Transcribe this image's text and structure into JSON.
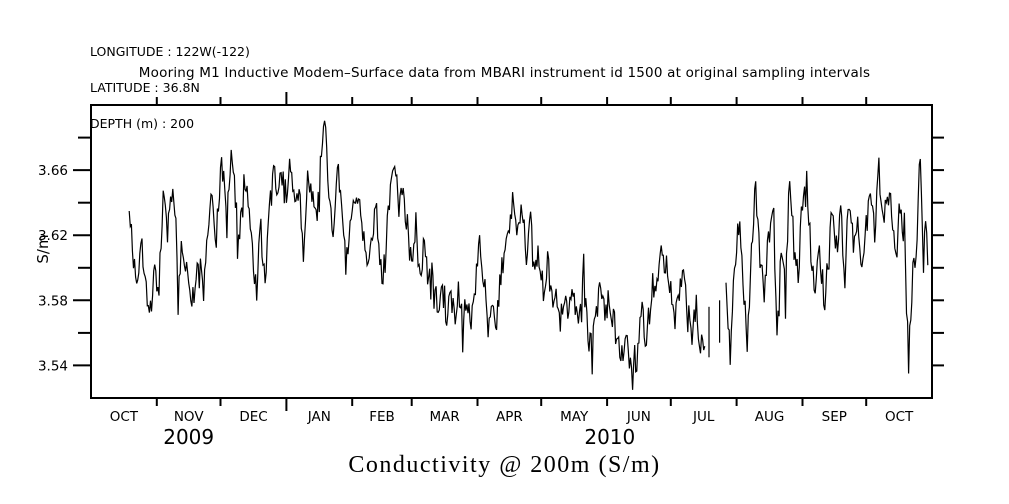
{
  "header": {
    "longitude": "LONGITUDE : 122W(-122)",
    "latitude": "LATITUDE : 36.8N",
    "depth": "DEPTH (m) : 200"
  },
  "chart_data": {
    "type": "line",
    "title": "Mooring M1 Inductive Modem–Surface data from MBARI instrument id 1500 at original sampling intervals",
    "bottom_title": "Conductivity @ 200m (S/m)",
    "ylabel": "S/m",
    "line_color": "#000000",
    "background_color": "#ffffff",
    "ylim": [
      3.52,
      3.7
    ],
    "x_range_days": [
      0,
      396
    ],
    "y_ticks_major": [
      3.54,
      3.58,
      3.62,
      3.66
    ],
    "y_tick_labels": [
      "3.54",
      "3.58",
      "3.62",
      "3.66"
    ],
    "y_ticks_minor": [
      3.56,
      3.6,
      3.64,
      3.68
    ],
    "month_boundary_days": [
      31,
      61,
      92,
      123,
      151,
      182,
      212,
      243,
      273,
      304,
      335,
      365
    ],
    "year_tick_day": 92,
    "months": [
      {
        "label": "OCT",
        "center_day": 15.5
      },
      {
        "label": "NOV",
        "center_day": 46
      },
      {
        "label": "DEC",
        "center_day": 76.5
      },
      {
        "label": "JAN",
        "center_day": 107.5
      },
      {
        "label": "FEB",
        "center_day": 137
      },
      {
        "label": "MAR",
        "center_day": 166.5
      },
      {
        "label": "APR",
        "center_day": 197
      },
      {
        "label": "MAY",
        "center_day": 227.5
      },
      {
        "label": "JUN",
        "center_day": 258
      },
      {
        "label": "JUL",
        "center_day": 288.5
      },
      {
        "label": "AUG",
        "center_day": 319.5
      },
      {
        "label": "SEP",
        "center_day": 350
      },
      {
        "label": "OCT",
        "center_day": 380.5
      }
    ],
    "years": [
      {
        "label": "2009",
        "center_day": 46
      },
      {
        "label": "2010",
        "center_day": 244.3
      }
    ],
    "series": {
      "name": "Conductivity (S/m)",
      "segments_day_value": [
        [
          [
            18,
            3.64
          ],
          [
            20,
            3.606
          ],
          [
            22,
            3.59
          ],
          [
            24,
            3.615
          ],
          [
            26,
            3.588
          ],
          [
            28,
            3.572
          ],
          [
            30,
            3.6
          ],
          [
            32,
            3.582
          ],
          [
            33,
            3.62
          ],
          [
            34,
            3.645
          ],
          [
            36,
            3.622
          ],
          [
            38,
            3.655
          ],
          [
            40,
            3.625
          ],
          [
            41,
            3.585
          ],
          [
            43,
            3.618
          ],
          [
            45,
            3.598
          ],
          [
            47,
            3.572
          ],
          [
            49,
            3.59
          ],
          [
            51,
            3.605
          ],
          [
            53,
            3.582
          ],
          [
            55,
            3.628
          ],
          [
            57,
            3.648
          ],
          [
            59,
            3.618
          ],
          [
            60,
            3.64
          ],
          [
            62,
            3.668
          ],
          [
            64,
            3.625
          ],
          [
            66,
            3.678
          ],
          [
            68,
            3.64
          ],
          [
            70,
            3.611
          ],
          [
            72,
            3.655
          ],
          [
            74,
            3.645
          ],
          [
            76,
            3.608
          ],
          [
            78,
            3.588
          ],
          [
            80,
            3.625
          ],
          [
            82,
            3.586
          ],
          [
            84,
            3.645
          ],
          [
            86,
            3.662
          ],
          [
            88,
            3.645
          ],
          [
            90,
            3.655
          ],
          [
            92,
            3.648
          ],
          [
            94,
            3.662
          ],
          [
            96,
            3.64
          ],
          [
            98,
            3.652
          ],
          [
            100,
            3.6
          ],
          [
            102,
            3.658
          ],
          [
            104,
            3.648
          ],
          [
            106,
            3.628
          ],
          [
            108,
            3.662
          ],
          [
            110,
            3.692
          ],
          [
            112,
            3.64
          ],
          [
            114,
            3.62
          ],
          [
            116,
            3.665
          ],
          [
            118,
            3.64
          ],
          [
            120,
            3.6
          ],
          [
            122,
            3.632
          ],
          [
            125,
            3.65
          ],
          [
            128,
            3.62
          ],
          [
            131,
            3.6
          ],
          [
            134,
            3.64
          ],
          [
            137,
            3.592
          ],
          [
            140,
            3.63
          ],
          [
            143,
            3.668
          ],
          [
            145,
            3.638
          ],
          [
            147,
            3.65
          ],
          [
            149,
            3.618
          ],
          [
            151,
            3.6
          ],
          [
            153,
            3.63
          ],
          [
            155,
            3.598
          ],
          [
            157,
            3.612
          ],
          [
            159,
            3.588
          ],
          [
            161,
            3.6
          ],
          [
            163,
            3.575
          ],
          [
            165,
            3.588
          ],
          [
            167,
            3.566
          ],
          [
            169,
            3.582
          ],
          [
            171,
            3.57
          ],
          [
            173,
            3.59
          ],
          [
            175,
            3.563
          ],
          [
            177,
            3.582
          ],
          [
            179,
            3.568
          ],
          [
            181,
            3.598
          ],
          [
            183,
            3.612
          ],
          [
            185,
            3.595
          ],
          [
            187,
            3.57
          ],
          [
            189,
            3.582
          ],
          [
            191,
            3.568
          ],
          [
            193,
            3.595
          ],
          [
            195,
            3.608
          ],
          [
            197,
            3.628
          ],
          [
            199,
            3.644
          ],
          [
            201,
            3.62
          ],
          [
            203,
            3.64
          ],
          [
            205,
            3.61
          ],
          [
            207,
            3.63
          ],
          [
            209,
            3.6
          ],
          [
            211,
            3.608
          ],
          [
            213,
            3.585
          ],
          [
            215,
            3.605
          ],
          [
            217,
            3.578
          ],
          [
            219,
            3.59
          ],
          [
            221,
            3.568
          ],
          [
            223,
            3.583
          ],
          [
            225,
            3.572
          ],
          [
            227,
            3.588
          ],
          [
            229,
            3.565
          ],
          [
            231,
            3.572
          ],
          [
            232,
            3.602
          ],
          [
            234,
            3.556
          ],
          [
            236,
            3.552
          ],
          [
            238,
            3.575
          ],
          [
            240,
            3.588
          ],
          [
            242,
            3.57
          ],
          [
            244,
            3.582
          ],
          [
            246,
            3.568
          ],
          [
            248,
            3.555
          ],
          [
            250,
            3.544
          ],
          [
            252,
            3.56
          ],
          [
            254,
            3.54
          ],
          [
            255,
            3.532
          ],
          [
            256,
            3.548
          ],
          [
            257,
            3.538
          ],
          [
            259,
            3.582
          ],
          [
            261,
            3.555
          ],
          [
            263,
            3.572
          ],
          [
            265,
            3.588
          ],
          [
            267,
            3.595
          ],
          [
            269,
            3.61
          ],
          [
            271,
            3.6
          ],
          [
            273,
            3.585
          ],
          [
            275,
            3.565
          ],
          [
            277,
            3.588
          ],
          [
            279,
            3.6
          ],
          [
            281,
            3.572
          ],
          [
            283,
            3.558
          ],
          [
            285,
            3.58
          ],
          [
            287,
            3.548
          ],
          [
            289,
            3.56
          ]
        ],
        [
          [
            299,
            3.588
          ],
          [
            301,
            3.543
          ],
          [
            303,
            3.6
          ],
          [
            305,
            3.628
          ],
          [
            307,
            3.596
          ],
          [
            309,
            3.551
          ],
          [
            311,
            3.612
          ],
          [
            313,
            3.645
          ],
          [
            315,
            3.605
          ],
          [
            317,
            3.582
          ],
          [
            319,
            3.625
          ],
          [
            321,
            3.64
          ],
          [
            323,
            3.567
          ],
          [
            325,
            3.608
          ],
          [
            327,
            3.588
          ],
          [
            329,
            3.655
          ],
          [
            331,
            3.618
          ],
          [
            333,
            3.598
          ],
          [
            335,
            3.64
          ],
          [
            337,
            3.652
          ],
          [
            339,
            3.61
          ],
          [
            341,
            3.585
          ],
          [
            343,
            3.618
          ],
          [
            345,
            3.57
          ],
          [
            347,
            3.605
          ],
          [
            349,
            3.64
          ],
          [
            351,
            3.613
          ],
          [
            353,
            3.632
          ],
          [
            355,
            3.598
          ],
          [
            357,
            3.645
          ],
          [
            359,
            3.615
          ],
          [
            361,
            3.635
          ],
          [
            363,
            3.6
          ],
          [
            365,
            3.628
          ],
          [
            367,
            3.65
          ],
          [
            369,
            3.622
          ],
          [
            371,
            3.66
          ],
          [
            373,
            3.63
          ],
          [
            375,
            3.65
          ],
          [
            377,
            3.635
          ],
          [
            379,
            3.605
          ],
          [
            381,
            3.64
          ],
          [
            383,
            3.618
          ],
          [
            385,
            3.542
          ],
          [
            387,
            3.6
          ],
          [
            389,
            3.62
          ],
          [
            390.5,
            3.675
          ],
          [
            392,
            3.602
          ],
          [
            393,
            3.636
          ],
          [
            394,
            3.603
          ]
        ]
      ],
      "gap_strokes_day_v1_v2": [
        [
          291,
          3.545,
          3.576
        ],
        [
          296,
          3.554,
          3.58
        ]
      ]
    },
    "noise": {
      "seed": 9,
      "amplitude": 0.0085,
      "spike_chance": 0.12,
      "spike_multiplier": 2.4,
      "spike_down_bias": 0.65,
      "step_days": 0.5
    }
  }
}
